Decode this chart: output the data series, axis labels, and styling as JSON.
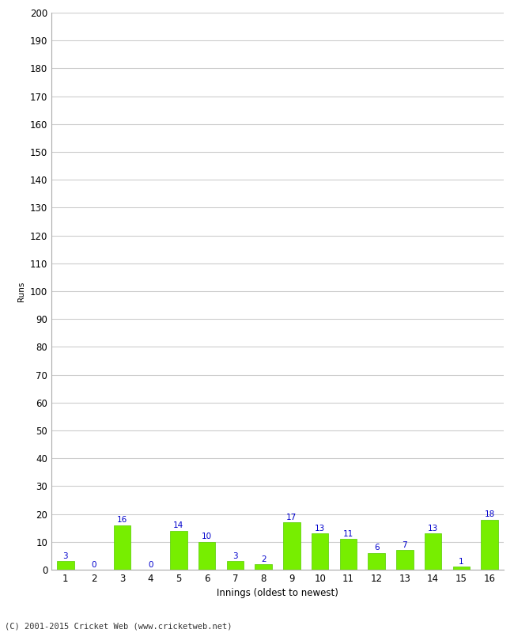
{
  "xlabel": "Innings (oldest to newest)",
  "ylabel": "Runs",
  "innings": [
    1,
    2,
    3,
    4,
    5,
    6,
    7,
    8,
    9,
    10,
    11,
    12,
    13,
    14,
    15,
    16
  ],
  "values": [
    3,
    0,
    16,
    0,
    14,
    10,
    3,
    2,
    17,
    13,
    11,
    6,
    7,
    13,
    1,
    18
  ],
  "bar_color": "#77ee00",
  "bar_edge_color": "#55cc00",
  "label_color": "#0000cc",
  "ylim": [
    0,
    200
  ],
  "yticks": [
    0,
    10,
    20,
    30,
    40,
    50,
    60,
    70,
    80,
    90,
    100,
    110,
    120,
    130,
    140,
    150,
    160,
    170,
    180,
    190,
    200
  ],
  "grid_color": "#cccccc",
  "background_color": "#ffffff",
  "footer": "(C) 2001-2015 Cricket Web (www.cricketweb.net)",
  "label_fontsize": 7.5,
  "axis_fontsize": 8.5,
  "ylabel_fontsize": 7.5,
  "xlabel_fontsize": 8.5,
  "footer_fontsize": 7.5
}
